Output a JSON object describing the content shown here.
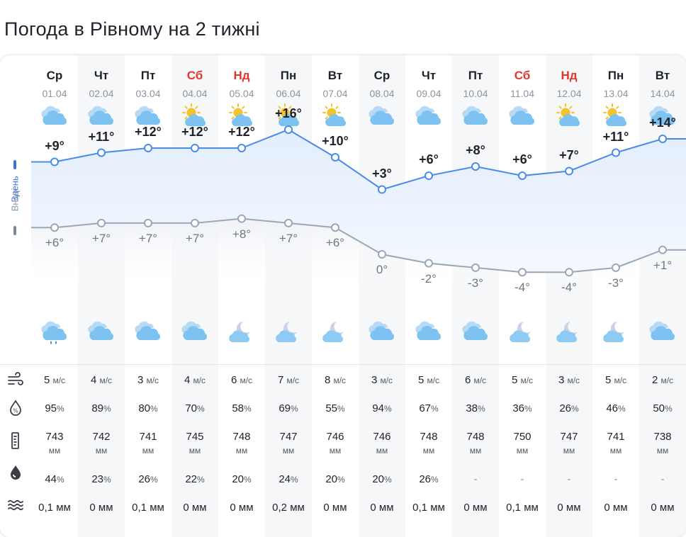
{
  "title": "Погода в Рівному на 2 тижні",
  "labels": {
    "day": "Вдень",
    "night": "Вночі"
  },
  "colors": {
    "day_line": "#4a8ae8",
    "night_line": "#9aa8b6",
    "weekend": "#e2362d"
  },
  "days": [
    {
      "name": "Ср",
      "date": "01.04",
      "weekend": false,
      "day_icon": "cloudy-icon",
      "night_icon": "rain-cloud-icon",
      "tmax": 9,
      "tmax_label": "+9°",
      "tmin": 6,
      "tmin_label": "+6°",
      "wind": "5",
      "humidity": "95",
      "pressure": "743",
      "precip_prob": "44",
      "precip": "0,1 мм"
    },
    {
      "name": "Чт",
      "date": "02.04",
      "weekend": false,
      "day_icon": "cloudy-icon",
      "night_icon": "cloudy-icon",
      "tmax": 11,
      "tmax_label": "+11°",
      "tmin": 7,
      "tmin_label": "+7°",
      "wind": "4",
      "humidity": "89",
      "pressure": "742",
      "precip_prob": "23",
      "precip": "0 мм"
    },
    {
      "name": "Пт",
      "date": "03.04",
      "weekend": false,
      "day_icon": "cloudy-icon",
      "night_icon": "cloudy-icon",
      "tmax": 12,
      "tmax_label": "+12°",
      "tmin": 7,
      "tmin_label": "+7°",
      "wind": "3",
      "humidity": "80",
      "pressure": "741",
      "precip_prob": "26",
      "precip": "0,1 мм"
    },
    {
      "name": "Сб",
      "date": "04.04",
      "weekend": true,
      "day_icon": "partly-sunny-icon",
      "night_icon": "cloudy-icon",
      "tmax": 12,
      "tmax_label": "+12°",
      "tmin": 7,
      "tmin_label": "+7°",
      "wind": "4",
      "humidity": "70",
      "pressure": "745",
      "precip_prob": "22",
      "precip": "0 мм"
    },
    {
      "name": "Нд",
      "date": "05.04",
      "weekend": true,
      "day_icon": "partly-sunny-icon",
      "night_icon": "moon-cloud-icon",
      "tmax": 12,
      "tmax_label": "+12°",
      "tmin": 8,
      "tmin_label": "+8°",
      "wind": "6",
      "humidity": "58",
      "pressure": "748",
      "precip_prob": "20",
      "precip": "0 мм"
    },
    {
      "name": "Пн",
      "date": "06.04",
      "weekend": false,
      "day_icon": "sun-rain-icon",
      "night_icon": "moon-cloud-icon",
      "tmax": 16,
      "tmax_label": "+16°",
      "tmin": 7,
      "tmin_label": "+7°",
      "wind": "7",
      "humidity": "69",
      "pressure": "747",
      "precip_prob": "24",
      "precip": "0,2 мм"
    },
    {
      "name": "Вт",
      "date": "07.04",
      "weekend": false,
      "day_icon": "partly-sunny-icon",
      "night_icon": "moon-cloud-icon",
      "tmax": 10,
      "tmax_label": "+10°",
      "tmin": 6,
      "tmin_label": "+6°",
      "wind": "8",
      "humidity": "55",
      "pressure": "746",
      "precip_prob": "20",
      "precip": "0 мм"
    },
    {
      "name": "Ср",
      "date": "08.04",
      "weekend": false,
      "day_icon": "cloudy-icon",
      "night_icon": "cloudy-icon",
      "tmax": 3,
      "tmax_label": "+3°",
      "tmin": 0,
      "tmin_label": "0°",
      "wind": "3",
      "humidity": "94",
      "pressure": "746",
      "precip_prob": "20",
      "precip": "0 мм"
    },
    {
      "name": "Чт",
      "date": "09.04",
      "weekend": false,
      "day_icon": "cloudy-icon",
      "night_icon": "cloudy-icon",
      "tmax": 6,
      "tmax_label": "+6°",
      "tmin": -2,
      "tmin_label": "-2°",
      "wind": "5",
      "humidity": "67",
      "pressure": "748",
      "precip_prob": "26",
      "precip": "0,1 мм"
    },
    {
      "name": "Пт",
      "date": "10.04",
      "weekend": false,
      "day_icon": "cloudy-icon",
      "night_icon": "cloudy-icon",
      "tmax": 8,
      "tmax_label": "+8°",
      "tmin": -3,
      "tmin_label": "-3°",
      "wind": "6",
      "humidity": "38",
      "pressure": "748",
      "precip_prob": "-",
      "precip": "0 мм"
    },
    {
      "name": "Сб",
      "date": "11.04",
      "weekend": true,
      "day_icon": "cloudy-icon",
      "night_icon": "moon-cloud-icon",
      "tmax": 6,
      "tmax_label": "+6°",
      "tmin": -4,
      "tmin_label": "-4°",
      "wind": "5",
      "humidity": "36",
      "pressure": "750",
      "precip_prob": "-",
      "precip": "0,1 мм"
    },
    {
      "name": "Нд",
      "date": "12.04",
      "weekend": true,
      "day_icon": "partly-sunny-icon",
      "night_icon": "moon-cloud-icon",
      "tmax": 7,
      "tmax_label": "+7°",
      "tmin": -4,
      "tmin_label": "-4°",
      "wind": "3",
      "humidity": "26",
      "pressure": "747",
      "precip_prob": "-",
      "precip": "0 мм"
    },
    {
      "name": "Пн",
      "date": "13.04",
      "weekend": false,
      "day_icon": "partly-sunny-icon",
      "night_icon": "moon-cloud-icon",
      "tmax": 11,
      "tmax_label": "+11°",
      "tmin": -3,
      "tmin_label": "-3°",
      "wind": "5",
      "humidity": "46",
      "pressure": "741",
      "precip_prob": "-",
      "precip": "0 мм"
    },
    {
      "name": "Вт",
      "date": "14.04",
      "weekend": false,
      "day_icon": "cloudy-icon",
      "night_icon": "cloudy-icon",
      "tmax": 14,
      "tmax_label": "+14°",
      "tmin": 1,
      "tmin_label": "+1°",
      "wind": "2",
      "humidity": "50",
      "pressure": "738",
      "precip_prob": "-",
      "precip": "0 мм"
    }
  ],
  "units": {
    "wind": "м/с",
    "percent": "%",
    "pressure": "мм"
  },
  "row_icons": [
    "wind-icon",
    "humidity-icon",
    "pressure-icon",
    "precip-probability-icon",
    "precipitation-icon"
  ],
  "trailing": {
    "tmax": 14,
    "tmin": 1
  }
}
